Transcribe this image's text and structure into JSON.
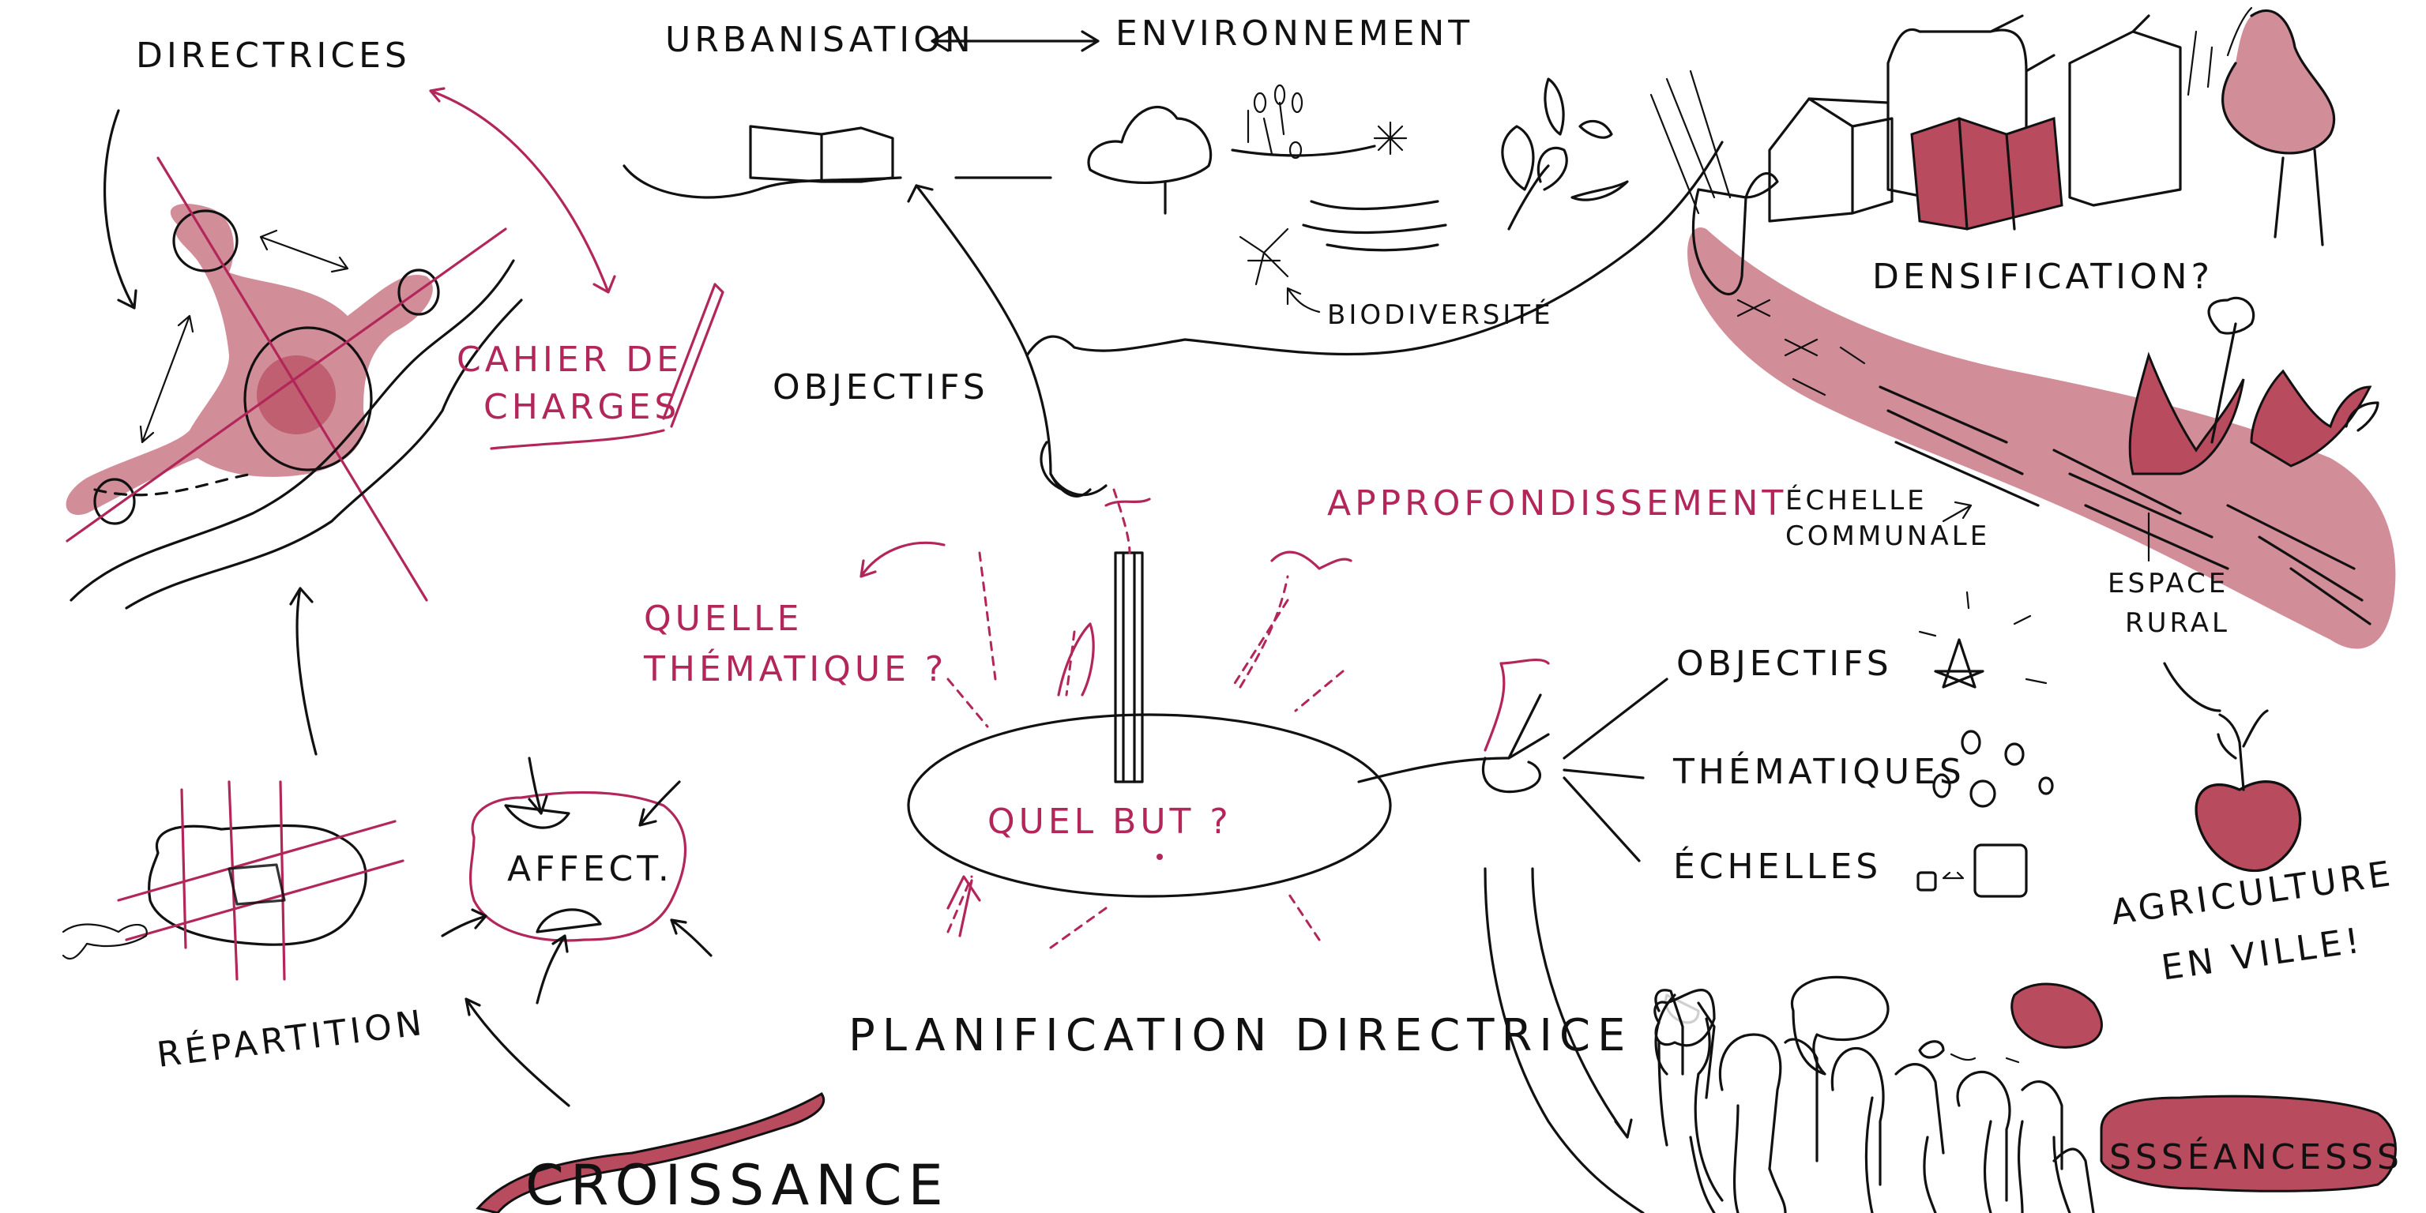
{
  "labels": {
    "directrices": "DIRECTRICES",
    "urbanisation": "URBANISATION",
    "environnement": "ENVIRONNEMENT",
    "cahier_line1": "CAHIER DE",
    "cahier_line2": "CHARGES",
    "objectifs_top": "OBJECTIFS",
    "biodiversite": "BIODIVERSITÉ",
    "densification": "DENSIFICATION?",
    "approfondissement": "APPROFONDISSEMENT",
    "echelle_line1": "ÉCHELLE",
    "echelle_line2": "COMMUNALE",
    "espace_line1": "ESPACE",
    "espace_line2": "RURAL",
    "quelle_line1": "QUELLE",
    "quelle_line2": "THÉMATIQUE ?",
    "quel_but": "QUEL BUT ?",
    "objectifs_right": "OBJECTIFS",
    "thematiques": "THÉMATIQUES",
    "echelles": "ÉCHELLES",
    "agriculture_line1": "AGRICULTURE",
    "agriculture_line2": "EN VILLE!",
    "affect": "AFFECT.",
    "repartition": "RÉPARTITION",
    "planification": "PLANIFICATION DIRECTRICE",
    "croissance": "CROISSANCE",
    "seances": "SSSÉANCESSS"
  },
  "colors": {
    "ink": "#111111",
    "accent_red": "#b3265a",
    "wash": "#c97a87",
    "wash_dark": "#b84b5e"
  }
}
